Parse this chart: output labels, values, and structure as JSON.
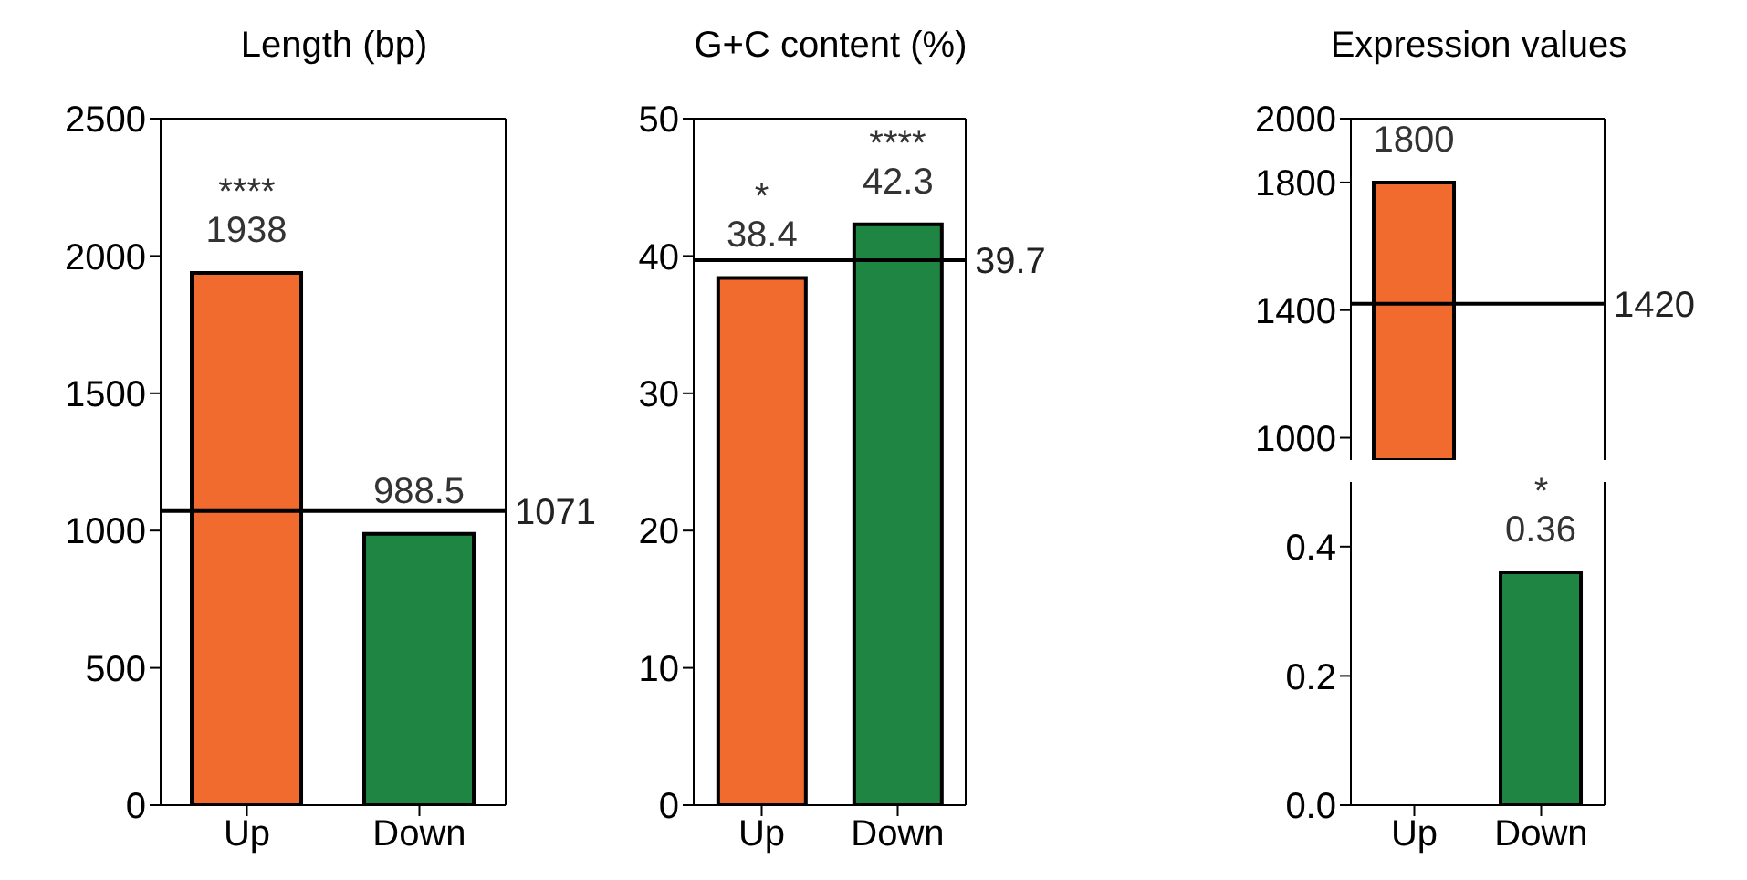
{
  "chart_data": [
    {
      "type": "bar",
      "title": "Length (bp)",
      "categories": [
        "Up",
        "Down"
      ],
      "values": [
        1938,
        988.5
      ],
      "colors": [
        "#f26b2e",
        "#1e8642"
      ],
      "ylim": [
        0,
        2500
      ],
      "yticks": [
        0,
        500,
        1000,
        1500,
        2000,
        2500
      ],
      "data_labels": true,
      "ref_lines": [
        {
          "axis": "y",
          "value": 1071,
          "label": "1071"
        }
      ],
      "annotations": [
        {
          "text": "****",
          "x": "Up",
          "y": 1938
        }
      ]
    },
    {
      "type": "bar",
      "title": "G+C content (%)",
      "categories": [
        "Up",
        "Down"
      ],
      "values": [
        38.4,
        42.3
      ],
      "colors": [
        "#f26b2e",
        "#1e8642"
      ],
      "ylim": [
        0,
        50
      ],
      "yticks": [
        0,
        10,
        20,
        30,
        40,
        50
      ],
      "data_labels": true,
      "ref_lines": [
        {
          "axis": "y",
          "value": 39.7,
          "label": "39.7"
        }
      ],
      "annotations": [
        {
          "text": "*",
          "x": "Up",
          "y": 38.4
        },
        {
          "text": "****",
          "x": "Down",
          "y": 42.3
        }
      ]
    },
    {
      "type": "bar",
      "title": "Expression values",
      "categories": [
        "Up",
        "Down"
      ],
      "values": [
        1800,
        null
      ],
      "colors": [
        "#f26b2e",
        "#1e8642"
      ],
      "ylim": [
        930,
        2000
      ],
      "yticks": [
        1000,
        1400,
        1800,
        2000
      ],
      "data_labels": true,
      "tick_labels": "y",
      "ref_lines": [
        {
          "axis": "y",
          "value": 1420,
          "label": "1420"
        }
      ]
    },
    {
      "type": "bar",
      "categories": [
        "Up",
        "Down"
      ],
      "values": [
        null,
        0.36
      ],
      "colors": [
        "#f26b2e",
        "#1e8642"
      ],
      "ylim": [
        0,
        0.5
      ],
      "yticks": [
        {
          "value": 0,
          "label": "0.0"
        },
        {
          "value": 0.2,
          "label": "0.2"
        },
        {
          "value": 0.4,
          "label": "0.4"
        }
      ],
      "data_labels": true,
      "annotations": [
        {
          "text": "*",
          "x": "Down",
          "y": 0.36
        }
      ]
    }
  ]
}
